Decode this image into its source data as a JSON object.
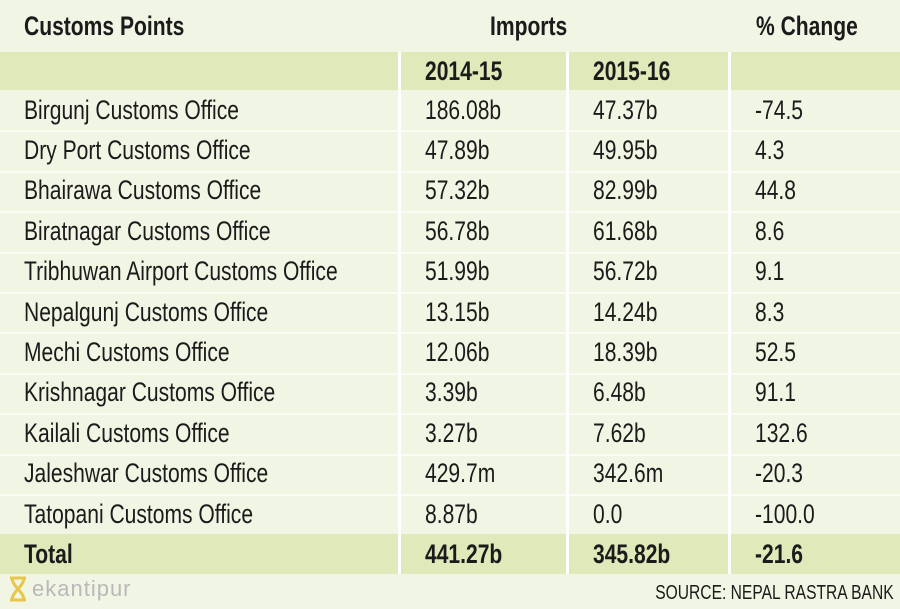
{
  "header": {
    "customs_points": "Customs Points",
    "imports": "Imports",
    "pct_change": "% Change",
    "year1": "2014-15",
    "year2": "2015-16"
  },
  "rows": [
    {
      "name": "Birgunj Customs Office",
      "y1": "186.08b",
      "y2": "47.37b",
      "change": "-74.5"
    },
    {
      "name": "Dry Port Customs Office",
      "y1": "47.89b",
      "y2": "49.95b",
      "change": "4.3"
    },
    {
      "name": "Bhairawa Customs Office",
      "y1": "57.32b",
      "y2": "82.99b",
      "change": "44.8"
    },
    {
      "name": "Biratnagar Customs Office",
      "y1": "56.78b",
      "y2": "61.68b",
      "change": "8.6"
    },
    {
      "name": "Tribhuwan Airport Customs Office",
      "y1": "51.99b",
      "y2": "56.72b",
      "change": "9.1"
    },
    {
      "name": "Nepalgunj Customs Office",
      "y1": "13.15b",
      "y2": "14.24b",
      "change": "8.3"
    },
    {
      "name": "Mechi Customs Office",
      "y1": "12.06b",
      "y2": "18.39b",
      "change": "52.5"
    },
    {
      "name": "Krishnagar Customs Office",
      "y1": "3.39b",
      "y2": "6.48b",
      "change": "91.1"
    },
    {
      "name": "Kailali Customs Office",
      "y1": "3.27b",
      "y2": "7.62b",
      "change": "132.6"
    },
    {
      "name": "Jaleshwar Customs Office",
      "y1": "429.7m",
      "y2": "342.6m",
      "change": "-20.3"
    },
    {
      "name": "Tatopani Customs Office",
      "y1": "8.87b",
      "y2": "0.0",
      "change": "-100.0"
    }
  ],
  "total": {
    "name": "Total",
    "y1": "441.27b",
    "y2": "345.82b",
    "change": "-21.6"
  },
  "footer": {
    "logo": "ekantipur",
    "source": "SOURCE: NEPAL RASTRA BANK"
  },
  "colors": {
    "background": "#f1f5e4",
    "highlight": "#dfe9b9",
    "logo": "#e8c64a"
  }
}
